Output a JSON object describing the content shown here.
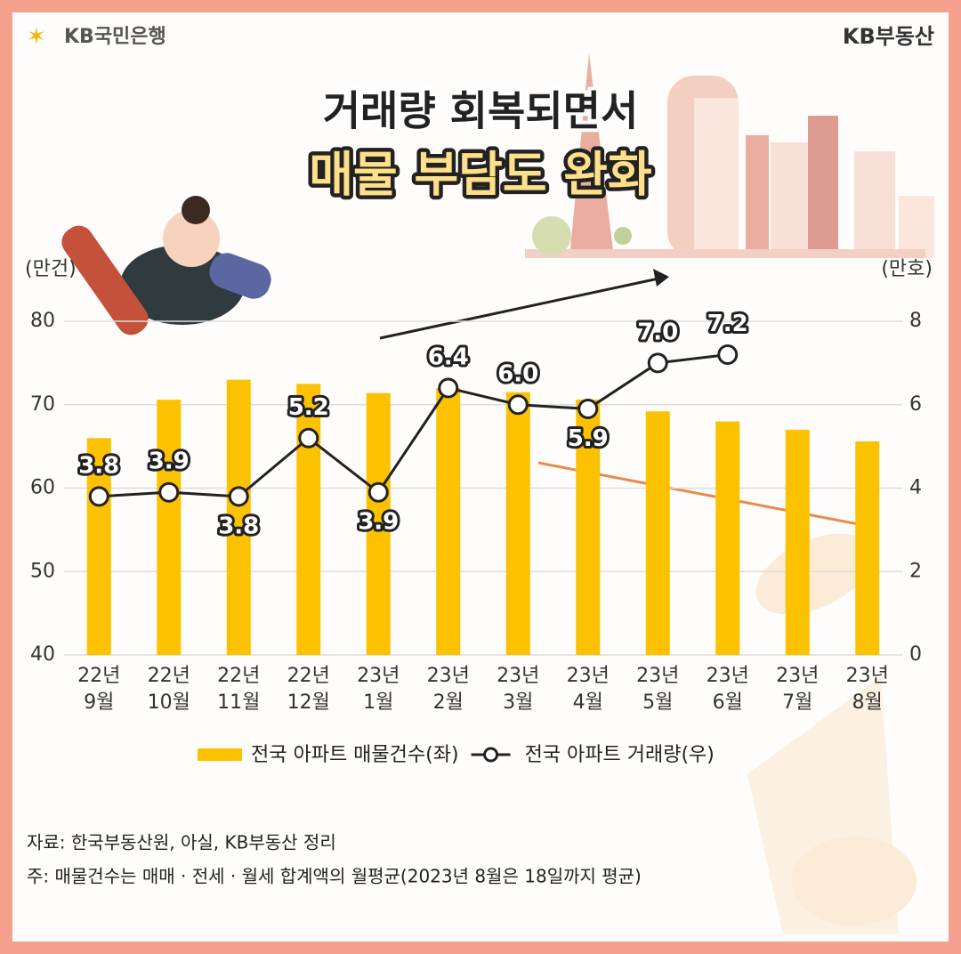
{
  "header": {
    "bank_logo": "KB국민은행",
    "brand_logo": "KB부동산",
    "title_line1": "거래량 회복되면서",
    "title_line2": "매물 부담도 완화"
  },
  "chart_data": {
    "type": "bar-line",
    "y_axis_label": "(만건)",
    "y2_axis_label": "(만호)",
    "categories": [
      "22년 9월",
      "22년 10월",
      "22년 11월",
      "22년 12월",
      "23년 1월",
      "23년 2월",
      "23년 3월",
      "23년 4월",
      "23년 5월",
      "23년 6월",
      "23년 7월",
      "23년 8월"
    ],
    "series": [
      {
        "name": "전국 아파트 매물건수(좌)",
        "type": "bar",
        "color": "#fcc200",
        "values": [
          66,
          70.6,
          73,
          72.5,
          71.4,
          72,
          71.5,
          70.6,
          69.2,
          68,
          67,
          65.6
        ]
      },
      {
        "name": "전국 아파트 거래량(우)",
        "type": "line",
        "axis": "y2",
        "color": "#222222",
        "values": [
          3.8,
          3.9,
          3.8,
          5.2,
          3.9,
          6.4,
          6,
          5.9,
          7,
          7.2,
          null,
          null
        ],
        "value_labels": [
          "3.8",
          "3.9",
          "3.8",
          "5.2",
          "3.9",
          "6.4",
          "6.0",
          "5.9",
          "7.0",
          "7.2",
          null,
          null
        ]
      }
    ],
    "ylim": [
      40,
      80
    ],
    "yticks": [
      40,
      50,
      60,
      70,
      80
    ],
    "y2lim": [
      0,
      8
    ],
    "y2ticks": [
      0,
      2,
      4,
      6,
      8
    ],
    "grid": true
  },
  "footer": {
    "source": "자료: 한국부동산원, 아실, KB부동산 정리",
    "note": "주: 매물건수는 매매 · 전세 · 월세 합계액의 월평균(2023년 8월은 18일까지 평균)"
  }
}
